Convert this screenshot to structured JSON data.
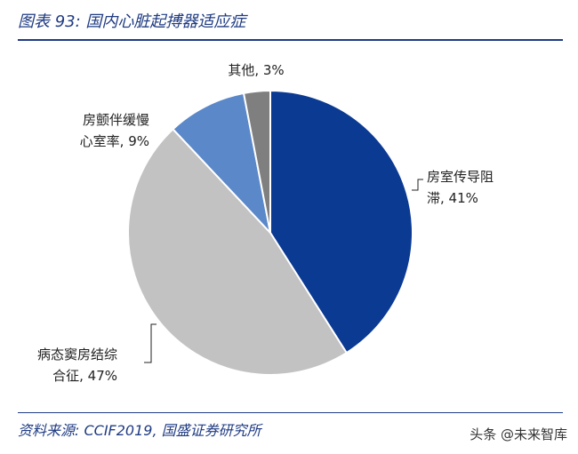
{
  "header": {
    "title": "图表 93:  国内心脏起搏器适应症"
  },
  "footer": {
    "source": "资料来源:  CCIF2019,  国盛证券研究所",
    "watermark": "头条 @未来智库"
  },
  "chart_data": {
    "type": "pie",
    "title": "图表 93:  国内心脏起搏器适应症",
    "slices": [
      {
        "label_lines": [
          "房室传导阻",
          "滞, 41%"
        ],
        "value": 41,
        "color": "#0b3a93"
      },
      {
        "label_lines": [
          "病态窦房结综",
          "合征, 47%"
        ],
        "value": 47,
        "color": "#c2c2c2"
      },
      {
        "label_lines": [
          "房颤伴缓慢",
          "心室率, 9%"
        ],
        "value": 9,
        "color": "#5a88c9"
      },
      {
        "label_lines": [
          "其他, 3%"
        ],
        "value": 3,
        "color": "#7f7f7f"
      }
    ],
    "start": "12 o'clock",
    "direction": "clockwise"
  }
}
